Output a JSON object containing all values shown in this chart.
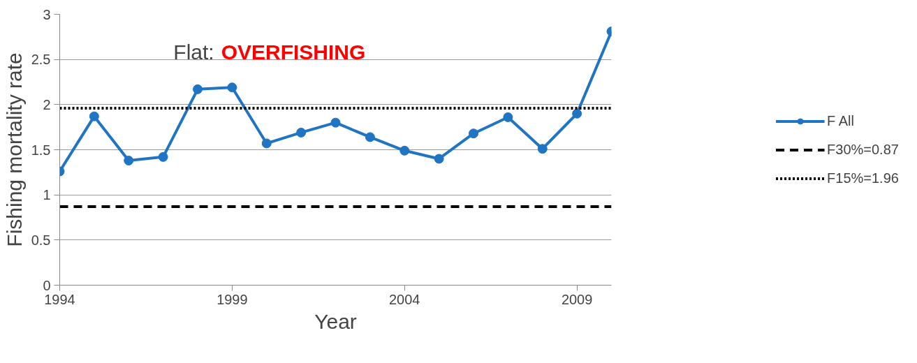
{
  "chart_data": {
    "type": "line",
    "xlabel": "Year",
    "ylabel": "Fishing mortality rate",
    "x": [
      1994,
      1995,
      1996,
      1997,
      1998,
      1999,
      2000,
      2001,
      2002,
      2003,
      2004,
      2005,
      2006,
      2007,
      2008,
      2009,
      2010
    ],
    "series": [
      {
        "name": "F All",
        "color": "#1f74c4",
        "values": [
          1.26,
          1.87,
          1.38,
          1.42,
          2.17,
          2.19,
          1.57,
          1.69,
          1.8,
          1.64,
          1.49,
          1.4,
          1.68,
          1.86,
          1.51,
          1.9,
          2.81
        ]
      }
    ],
    "ref_lines": [
      {
        "axis": "y",
        "value": 0.87,
        "label": "F30%=0.87",
        "color": "#000000",
        "line_style": "dashed"
      },
      {
        "axis": "y",
        "value": 1.96,
        "label": "F15%=1.96",
        "color": "#000000",
        "line_style": "dotted"
      }
    ],
    "annotations": [
      "Flat:",
      "OVERFISHING"
    ],
    "xlim": [
      1994,
      2010
    ],
    "xticks": [
      1994,
      1999,
      2004,
      2009
    ],
    "ylim": [
      0,
      3
    ],
    "yticks": [
      0,
      0.5,
      1,
      1.5,
      2,
      2.5,
      3
    ],
    "grid": "y",
    "legend": "right",
    "marker": "circle",
    "line_style": "solid"
  }
}
